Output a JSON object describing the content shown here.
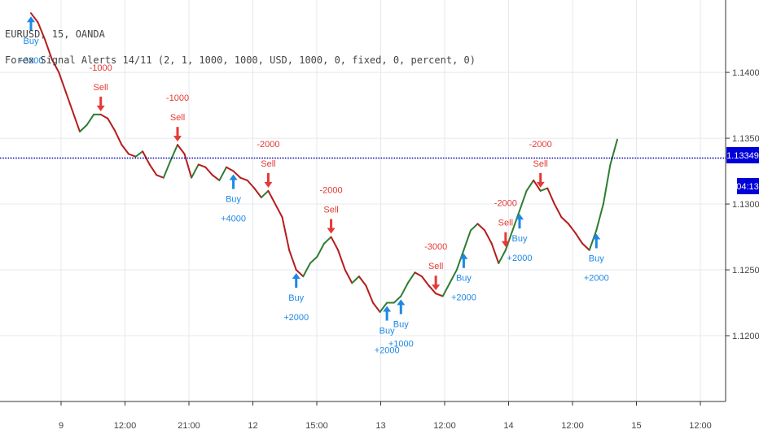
{
  "header": {
    "symbol": "EURUSD, 15, OANDA",
    "study": "Forex Signal Alerts 14/11 (2, 1, 1000, 1000, USD, 1000, 0, fixed, 0, percent, 0)"
  },
  "price_tag": {
    "value": "1.13349",
    "countdown": "04:13"
  },
  "chart_data": {
    "type": "line",
    "title": "",
    "xlabel": "",
    "ylabel": "",
    "ylim": [
      1.115,
      1.1455
    ],
    "x_ticks": [
      "9",
      "12:00",
      "21:00",
      "12",
      "15:00",
      "13",
      "12:00",
      "14",
      "12:00",
      "15",
      "12:00"
    ],
    "y_ticks": [
      "1.14000",
      "1.13500",
      "1.13000",
      "1.12500",
      "1.12000"
    ],
    "y_tick_values": [
      1.14,
      1.135,
      1.13,
      1.125,
      1.12
    ],
    "current_price": 1.13349,
    "grid": true,
    "series": [
      {
        "values": [
          1.1445,
          1.1438,
          1.1425,
          1.141,
          1.14,
          1.1385,
          1.137,
          1.1355,
          1.136,
          1.1368,
          1.1368,
          1.1365,
          1.1356,
          1.1345,
          1.1338,
          1.1336,
          1.134,
          1.133,
          1.1322,
          1.132,
          1.1333,
          1.1345,
          1.1338,
          1.132,
          1.133,
          1.1328,
          1.1322,
          1.1318,
          1.1328,
          1.1325,
          1.132,
          1.1318,
          1.1312,
          1.1305,
          1.131,
          1.13,
          1.129,
          1.1265,
          1.125,
          1.1245,
          1.1255,
          1.126,
          1.127,
          1.1275,
          1.1265,
          1.125,
          1.124,
          1.1245,
          1.1238,
          1.1225,
          1.1218,
          1.1225,
          1.1225,
          1.123,
          1.124,
          1.1248,
          1.1245,
          1.1238,
          1.1232,
          1.123,
          1.124,
          1.125,
          1.1265,
          1.128,
          1.1285,
          1.128,
          1.127,
          1.1255,
          1.1265,
          1.128,
          1.1295,
          1.131,
          1.1318,
          1.131,
          1.1312,
          1.13,
          1.129,
          1.1285,
          1.1278,
          1.127,
          1.1265,
          1.128,
          1.13,
          1.133,
          1.1349
        ]
      }
    ],
    "signals": [
      {
        "side": "buy",
        "label": "Buy",
        "amount": "+3000",
        "index": 0
      },
      {
        "side": "sell",
        "label": "Sell",
        "amount": "-1000",
        "index": 10
      },
      {
        "side": "sell",
        "label": "Sell",
        "amount": "-1000",
        "index": 21
      },
      {
        "side": "sell",
        "label": "Sell",
        "amount": "-2000",
        "index": 34
      },
      {
        "side": "buy",
        "label": "Buy",
        "amount": "+4000",
        "index": 29
      },
      {
        "side": "sell",
        "label": "Sell",
        "amount": "-2000",
        "index": 43
      },
      {
        "side": "buy",
        "label": "Buy",
        "amount": "+2000",
        "index": 38
      },
      {
        "side": "buy",
        "label": "Buy",
        "amount": "+2000",
        "index": 51
      },
      {
        "side": "buy",
        "label": "Buy",
        "amount": "+1000",
        "index": 53
      },
      {
        "side": "sell",
        "label": "Sell",
        "amount": "-3000",
        "index": 58
      },
      {
        "side": "buy",
        "label": "Buy",
        "amount": "+2000",
        "index": 62
      },
      {
        "side": "sell",
        "label": "Sell",
        "amount": "-2000",
        "index": 68
      },
      {
        "side": "buy",
        "label": "Buy",
        "amount": "+2000",
        "index": 70
      },
      {
        "side": "sell",
        "label": "Sell",
        "amount": "-2000",
        "index": 73
      },
      {
        "side": "buy",
        "label": "Buy",
        "amount": "+2000",
        "index": 81
      }
    ],
    "colors": {
      "up": "#2e7d32",
      "down": "#b71c1c",
      "buy": "#1e88e5",
      "sell": "#e53935",
      "price_line": "#0000aa",
      "price_tag": "#0000d8",
      "grid": "#e4e9ee",
      "axis": "#333333"
    }
  }
}
